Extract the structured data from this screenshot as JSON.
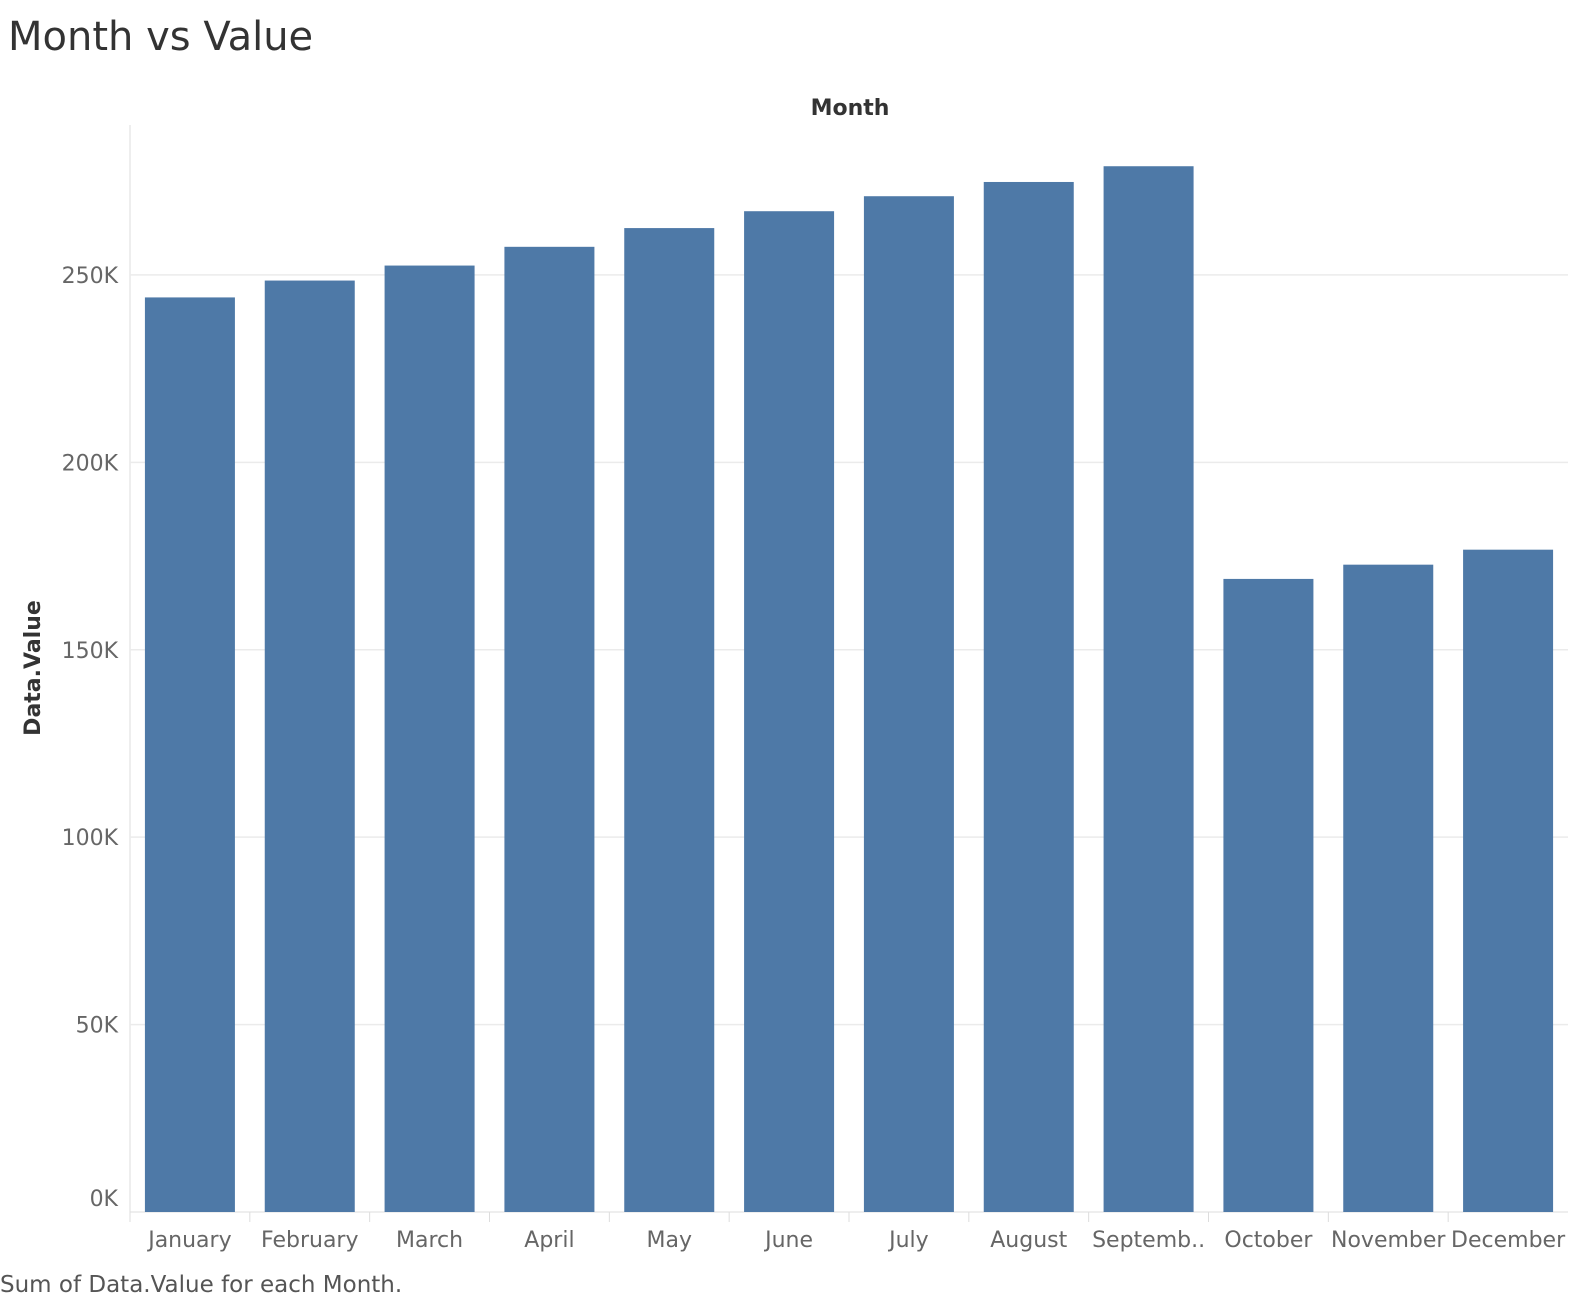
{
  "title": "Month vs Value",
  "caption": "Sum of Data.Value for each Month.",
  "chart_data": {
    "type": "bar",
    "title": "Month vs Value",
    "xlabel": "Month",
    "ylabel": "Data.Value",
    "xlabel_position": "top",
    "categories": [
      "January",
      "February",
      "March",
      "April",
      "May",
      "June",
      "July",
      "August",
      "September",
      "October",
      "November",
      "December"
    ],
    "category_labels": [
      "January",
      "February",
      "March",
      "April",
      "May",
      "June",
      "July",
      "August",
      "Septemb..",
      "October",
      "November",
      "December"
    ],
    "values": [
      244000,
      248500,
      252500,
      257500,
      262500,
      267000,
      271000,
      274800,
      279000,
      168900,
      172700,
      176700
    ],
    "ylim": [
      0,
      290000
    ],
    "yticks": [
      0,
      50000,
      100000,
      150000,
      200000,
      250000
    ],
    "ytick_labels": [
      "0K",
      "50K",
      "100K",
      "150K",
      "200K",
      "250K"
    ],
    "grid": true,
    "colors": {
      "bar": "#4e79a7",
      "grid": "#ebebeb",
      "axis": "#dddddd"
    }
  }
}
